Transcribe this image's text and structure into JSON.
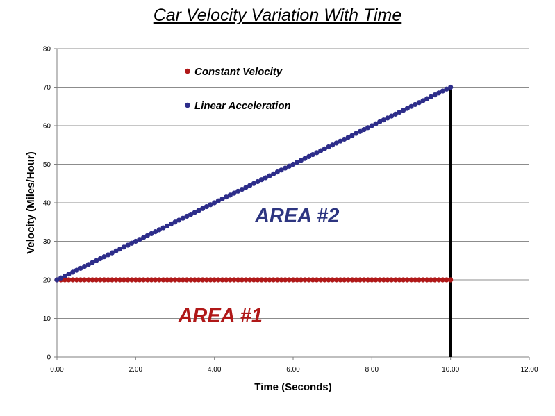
{
  "chart_data": {
    "type": "scatter",
    "title": "Car Velocity Variation With Time",
    "xlabel": "Time (Seconds)",
    "ylabel": "Velocity (Miles/Hour)",
    "xlim": [
      0,
      12
    ],
    "ylim": [
      0,
      80
    ],
    "x_ticks": [
      "0.00",
      "2.00",
      "4.00",
      "6.00",
      "8.00",
      "10.00",
      "12.00"
    ],
    "y_ticks": [
      "0",
      "10",
      "20",
      "30",
      "40",
      "50",
      "60",
      "70",
      "80"
    ],
    "grid": "horizontal",
    "legend_position": "top-left",
    "series": [
      {
        "name": "Constant Velocity",
        "color": "#b01818",
        "start": [
          0,
          20
        ],
        "end": [
          10,
          20
        ],
        "points": 101
      },
      {
        "name": "Linear Acceleration",
        "color": "#2d2d8a",
        "start": [
          0,
          20
        ],
        "end": [
          10,
          70
        ],
        "points": 101
      }
    ],
    "vertical_line": {
      "x": 10,
      "y_from": 0,
      "y_to": 70,
      "color": "#000000"
    },
    "annotations": [
      {
        "text": "AREA #2",
        "x": 6.1,
        "y": 35,
        "color": "#2d3580"
      },
      {
        "text": "AREA #1",
        "x": 4.15,
        "y": 9,
        "color": "#b01818"
      }
    ]
  }
}
